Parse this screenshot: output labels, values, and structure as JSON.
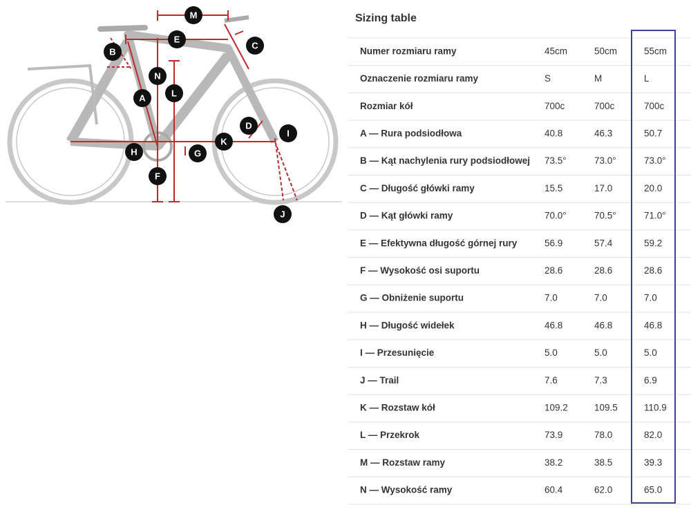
{
  "diagram": {
    "labels": [
      {
        "letter": "M"
      },
      {
        "letter": "E"
      },
      {
        "letter": "C"
      },
      {
        "letter": "B"
      },
      {
        "letter": "N"
      },
      {
        "letter": "L"
      },
      {
        "letter": "A"
      },
      {
        "letter": "D"
      },
      {
        "letter": "I"
      },
      {
        "letter": "K"
      },
      {
        "letter": "H"
      },
      {
        "letter": "G"
      },
      {
        "letter": "F"
      },
      {
        "letter": "J"
      }
    ]
  },
  "table": {
    "title": "Sizing table",
    "rows": [
      [
        "Numer rozmiaru ramy",
        "45cm",
        "50cm",
        "55cm"
      ],
      [
        "Oznaczenie rozmiaru ramy",
        "S",
        "M",
        "L"
      ],
      [
        "Rozmiar kół",
        "700c",
        "700c",
        "700c"
      ],
      [
        "A — Rura podsiodłowa",
        "40.8",
        "46.3",
        "50.7"
      ],
      [
        "B — Kąt nachylenia rury podsiodłowej",
        "73.5°",
        "73.0°",
        "73.0°"
      ],
      [
        "C — Długość główki ramy",
        "15.5",
        "17.0",
        "20.0"
      ],
      [
        "D — Kąt główki ramy",
        "70.0°",
        "70.5°",
        "71.0°"
      ],
      [
        "E — Efektywna długość górnej rury",
        "56.9",
        "57.4",
        "59.2"
      ],
      [
        "F — Wysokość osi suportu",
        "28.6",
        "28.6",
        "28.6"
      ],
      [
        "G — Obniżenie suportu",
        "7.0",
        "7.0",
        "7.0"
      ],
      [
        "H — Długość widełek",
        "46.8",
        "46.8",
        "46.8"
      ],
      [
        "I — Przesunięcie",
        "5.0",
        "5.0",
        "5.0"
      ],
      [
        "J — Trail",
        "7.6",
        "7.3",
        "6.9"
      ],
      [
        "K — Rozstaw kół",
        "109.2",
        "109.5",
        "110.9"
      ],
      [
        "L — Przekrok",
        "73.9",
        "78.0",
        "82.0"
      ],
      [
        "M — Rozstaw ramy",
        "38.2",
        "38.5",
        "39.3"
      ],
      [
        "N — Wysokość ramy",
        "60.4",
        "62.0",
        "65.0"
      ]
    ]
  }
}
